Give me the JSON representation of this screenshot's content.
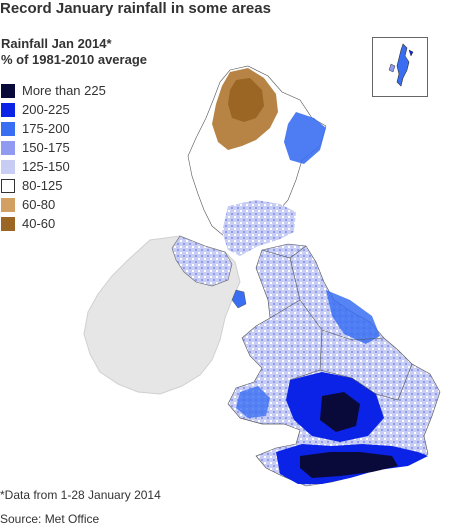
{
  "title": "Record January rainfall in some areas",
  "subtitle_line1": "Rainfall Jan 2014*",
  "subtitle_line2": "% of 1981-2010 average",
  "legend": [
    {
      "label": "More than 225",
      "color": "#0a0a3a",
      "outlined": false
    },
    {
      "label": "200-225",
      "color": "#0a23e6",
      "outlined": false
    },
    {
      "label": "175-200",
      "color": "#3a6ef2",
      "outlined": false
    },
    {
      "label": "150-175",
      "color": "#8f9af0",
      "outlined": false
    },
    {
      "label": "125-150",
      "color": "#c8cdf4",
      "outlined": false
    },
    {
      "label": "80-125",
      "color": "#ffffff",
      "outlined": true
    },
    {
      "label": "60-80",
      "color": "#d3a063",
      "outlined": false
    },
    {
      "label": "40-60",
      "color": "#9b6624",
      "outlined": false
    }
  ],
  "footnote": "*Data from 1-28 January 2014",
  "source": "Source: Met Office"
}
